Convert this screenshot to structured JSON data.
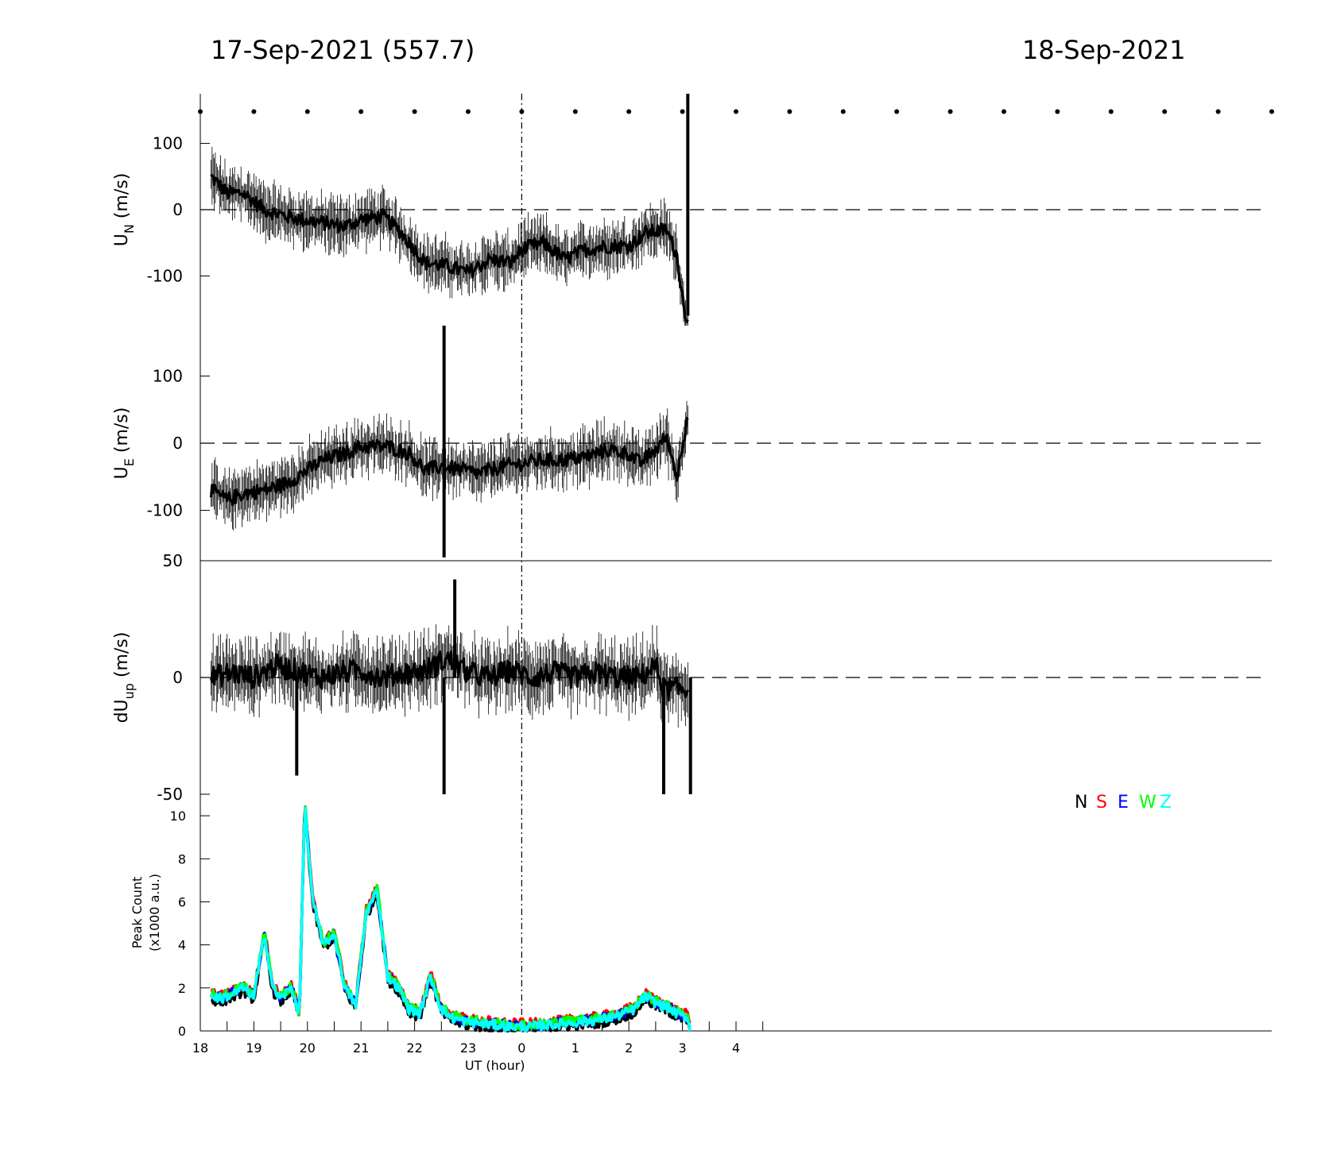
{
  "header": {
    "left_title": "17-Sep-2021 (557.7)",
    "right_title": "18-Sep-2021"
  },
  "chart_data": [
    {
      "type": "line",
      "panel": "north-wind",
      "ylabel_main": "U",
      "ylabel_sub": "N",
      "ylabel_unit": " (m/s)",
      "yticks": [
        "100",
        "0",
        "-100"
      ],
      "ylim": [
        -175,
        175
      ],
      "x_range_hours": [
        18.2,
        27.1
      ],
      "reference_line": 0,
      "trend": [
        {
          "t": 18.2,
          "v": 50
        },
        {
          "t": 18.5,
          "v": 25
        },
        {
          "t": 18.8,
          "v": 25
        },
        {
          "t": 19.2,
          "v": 0
        },
        {
          "t": 19.6,
          "v": -10
        },
        {
          "t": 19.9,
          "v": -15
        },
        {
          "t": 20.3,
          "v": -20
        },
        {
          "t": 20.7,
          "v": -25
        },
        {
          "t": 21.0,
          "v": -15
        },
        {
          "t": 21.4,
          "v": -10
        },
        {
          "t": 21.7,
          "v": -30
        },
        {
          "t": 21.95,
          "v": -55
        },
        {
          "t": 22.2,
          "v": -80
        },
        {
          "t": 22.6,
          "v": -85
        },
        {
          "t": 23.0,
          "v": -95
        },
        {
          "t": 23.4,
          "v": -75
        },
        {
          "t": 23.8,
          "v": -80
        },
        {
          "t": 24.0,
          "v": -60
        },
        {
          "t": 24.4,
          "v": -50
        },
        {
          "t": 24.8,
          "v": -75
        },
        {
          "t": 25.2,
          "v": -60
        },
        {
          "t": 25.6,
          "v": -55
        },
        {
          "t": 26.0,
          "v": -55
        },
        {
          "t": 26.3,
          "v": -35
        },
        {
          "t": 26.7,
          "v": -30
        },
        {
          "t": 26.9,
          "v": -70
        },
        {
          "t": 27.05,
          "v": -160
        }
      ],
      "spikes": [
        {
          "t": 27.1,
          "v_low": -160,
          "v_high": 175
        }
      ],
      "marker_dots_every_hours": 1,
      "marker_dots_value": 148
    },
    {
      "type": "line",
      "panel": "east-wind",
      "ylabel_main": "U",
      "ylabel_sub": "E",
      "ylabel_unit": " (m/s)",
      "yticks": [
        "100",
        "0",
        "-100"
      ],
      "ylim": [
        -175,
        175
      ],
      "x_range_hours": [
        18.2,
        27.1
      ],
      "reference_line": 0,
      "trend": [
        {
          "t": 18.2,
          "v": -70
        },
        {
          "t": 18.5,
          "v": -85
        },
        {
          "t": 18.8,
          "v": -75
        },
        {
          "t": 19.2,
          "v": -70
        },
        {
          "t": 19.6,
          "v": -60
        },
        {
          "t": 19.9,
          "v": -45
        },
        {
          "t": 20.3,
          "v": -25
        },
        {
          "t": 20.7,
          "v": -15
        },
        {
          "t": 21.0,
          "v": -5
        },
        {
          "t": 21.5,
          "v": -5
        },
        {
          "t": 21.9,
          "v": -15
        },
        {
          "t": 22.2,
          "v": -40
        },
        {
          "t": 22.5,
          "v": -35
        },
        {
          "t": 22.9,
          "v": -40
        },
        {
          "t": 23.2,
          "v": -45
        },
        {
          "t": 23.6,
          "v": -35
        },
        {
          "t": 24.0,
          "v": -30
        },
        {
          "t": 24.4,
          "v": -25
        },
        {
          "t": 24.8,
          "v": -25
        },
        {
          "t": 25.2,
          "v": -20
        },
        {
          "t": 25.6,
          "v": -10
        },
        {
          "t": 26.0,
          "v": -15
        },
        {
          "t": 26.2,
          "v": -30
        },
        {
          "t": 26.5,
          "v": -10
        },
        {
          "t": 26.7,
          "v": 10
        },
        {
          "t": 26.9,
          "v": -50
        },
        {
          "t": 27.1,
          "v": 45
        }
      ],
      "spikes": [
        {
          "t": 22.55,
          "v_low": -170,
          "v_high": 175
        }
      ],
      "marker_dots_every_hours": 0,
      "marker_dots_value": 0
    },
    {
      "type": "line",
      "panel": "vertical-wind",
      "ylabel_main": "dU",
      "ylabel_sub": "up",
      "ylabel_unit": " (m/s)",
      "yticks": [
        "50",
        "0",
        "-50"
      ],
      "ylim": [
        -50,
        50
      ],
      "x_range_hours": [
        18.2,
        27.1
      ],
      "reference_line": 0,
      "trend": [
        {
          "t": 18.2,
          "v": 0
        },
        {
          "t": 18.6,
          "v": 2
        },
        {
          "t": 19.0,
          "v": 0
        },
        {
          "t": 19.4,
          "v": 5
        },
        {
          "t": 19.8,
          "v": 3
        },
        {
          "t": 20.2,
          "v": 0
        },
        {
          "t": 20.6,
          "v": 2
        },
        {
          "t": 21.0,
          "v": 3
        },
        {
          "t": 21.4,
          "v": 0
        },
        {
          "t": 21.8,
          "v": 2
        },
        {
          "t": 22.2,
          "v": 3
        },
        {
          "t": 22.6,
          "v": 8
        },
        {
          "t": 23.0,
          "v": 2
        },
        {
          "t": 23.4,
          "v": 0
        },
        {
          "t": 23.8,
          "v": 3
        },
        {
          "t": 24.2,
          "v": 0
        },
        {
          "t": 24.6,
          "v": 2
        },
        {
          "t": 25.0,
          "v": 0
        },
        {
          "t": 25.4,
          "v": 2
        },
        {
          "t": 25.8,
          "v": 0
        },
        {
          "t": 26.2,
          "v": 0
        },
        {
          "t": 26.5,
          "v": 5
        },
        {
          "t": 26.65,
          "v": -5
        }
      ],
      "spikes": [
        {
          "t": 19.8,
          "v_low": -42,
          "v_high": 0
        },
        {
          "t": 22.55,
          "v_low": -50,
          "v_high": 0
        },
        {
          "t": 22.75,
          "v_low": 0,
          "v_high": 42
        },
        {
          "t": 26.65,
          "v_low": -50,
          "v_high": 0
        },
        {
          "t": 27.15,
          "v_low": -50,
          "v_high": 0
        }
      ],
      "marker_dots_every_hours": 0,
      "marker_dots_value": 0
    },
    {
      "type": "line",
      "panel": "peak-count",
      "ylabel_line1": "Peak Count",
      "ylabel_line2": "(x1000 a.u.)",
      "xlabel": "UT (hour)",
      "xticks": [
        "18",
        "19",
        "20",
        "21",
        "22",
        "23",
        "0",
        "1",
        "2",
        "3",
        "4"
      ],
      "yticks": [
        "10",
        "8",
        "6",
        "4",
        "2",
        "0"
      ],
      "ylim": [
        0,
        11
      ],
      "legend": [
        "N",
        "S",
        "E",
        "W",
        "Z"
      ],
      "legend_placement": "top-right",
      "series": [
        {
          "name": "N",
          "color": "#000000",
          "offset": -0.15
        },
        {
          "name": "S",
          "color": "#ff0000",
          "offset": 0.15
        },
        {
          "name": "E",
          "color": "#0000ff",
          "offset": 0.05
        },
        {
          "name": "W",
          "color": "#00ff00",
          "offset": 0.1
        },
        {
          "name": "Z",
          "color": "#00ffff",
          "offset": 0
        }
      ],
      "base_profile": [
        {
          "t": 18.2,
          "v": 1.6
        },
        {
          "t": 18.4,
          "v": 1.5
        },
        {
          "t": 18.6,
          "v": 1.7
        },
        {
          "t": 18.8,
          "v": 2.0
        },
        {
          "t": 19.0,
          "v": 1.6
        },
        {
          "t": 19.2,
          "v": 4.5
        },
        {
          "t": 19.35,
          "v": 2.0
        },
        {
          "t": 19.5,
          "v": 1.5
        },
        {
          "t": 19.7,
          "v": 2.0
        },
        {
          "t": 19.85,
          "v": 0.8
        },
        {
          "t": 19.95,
          "v": 10.5
        },
        {
          "t": 20.1,
          "v": 6.0
        },
        {
          "t": 20.3,
          "v": 4.0
        },
        {
          "t": 20.5,
          "v": 4.5
        },
        {
          "t": 20.7,
          "v": 2.0
        },
        {
          "t": 20.9,
          "v": 1.2
        },
        {
          "t": 21.1,
          "v": 5.5
        },
        {
          "t": 21.3,
          "v": 6.5
        },
        {
          "t": 21.5,
          "v": 2.5
        },
        {
          "t": 21.7,
          "v": 2.0
        },
        {
          "t": 21.9,
          "v": 1.0
        },
        {
          "t": 22.1,
          "v": 0.8
        },
        {
          "t": 22.3,
          "v": 2.5
        },
        {
          "t": 22.5,
          "v": 1.0
        },
        {
          "t": 22.7,
          "v": 0.6
        },
        {
          "t": 23.0,
          "v": 0.4
        },
        {
          "t": 23.4,
          "v": 0.3
        },
        {
          "t": 23.8,
          "v": 0.2
        },
        {
          "t": 24.2,
          "v": 0.2
        },
        {
          "t": 24.6,
          "v": 0.3
        },
        {
          "t": 25.0,
          "v": 0.4
        },
        {
          "t": 25.4,
          "v": 0.5
        },
        {
          "t": 25.8,
          "v": 0.7
        },
        {
          "t": 26.1,
          "v": 1.0
        },
        {
          "t": 26.3,
          "v": 1.6
        },
        {
          "t": 26.5,
          "v": 1.3
        },
        {
          "t": 26.7,
          "v": 1.1
        },
        {
          "t": 26.9,
          "v": 0.8
        },
        {
          "t": 27.1,
          "v": 0.6
        },
        {
          "t": 27.15,
          "v": 0.0
        }
      ]
    }
  ]
}
